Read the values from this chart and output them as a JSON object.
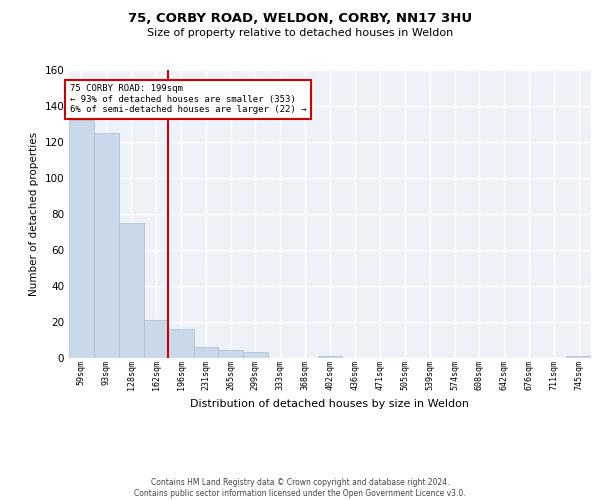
{
  "title": "75, CORBY ROAD, WELDON, CORBY, NN17 3HU",
  "subtitle": "Size of property relative to detached houses in Weldon",
  "xlabel": "Distribution of detached houses by size in Weldon",
  "ylabel": "Number of detached properties",
  "bin_labels": [
    "59sqm",
    "93sqm",
    "128sqm",
    "162sqm",
    "196sqm",
    "231sqm",
    "265sqm",
    "299sqm",
    "333sqm",
    "368sqm",
    "402sqm",
    "436sqm",
    "471sqm",
    "505sqm",
    "539sqm",
    "574sqm",
    "608sqm",
    "642sqm",
    "676sqm",
    "711sqm",
    "745sqm"
  ],
  "bar_heights": [
    132,
    125,
    75,
    21,
    16,
    6,
    4,
    3,
    0,
    0,
    1,
    0,
    0,
    0,
    0,
    0,
    0,
    0,
    0,
    0,
    1
  ],
  "bar_color": "#c9d9e9",
  "bar_edge_color": "#a8bece",
  "property_line_x": 196,
  "annotation_text": "75 CORBY ROAD: 199sqm\n← 93% of detached houses are smaller (353)\n6% of semi-detached houses are larger (22) →",
  "annotation_box_color": "#ffffff",
  "annotation_box_edge_color": "#cc0000",
  "vline_color": "#cc0000",
  "ylim": [
    0,
    160
  ],
  "yticks": [
    0,
    20,
    40,
    60,
    80,
    100,
    120,
    140,
    160
  ],
  "footer_line1": "Contains HM Land Registry data © Crown copyright and database right 2024.",
  "footer_line2": "Contains public sector information licensed under the Open Government Licence v3.0.",
  "background_color": "#eef2f8",
  "grid_color": "#ffffff",
  "bin_edges": [
    59,
    93,
    128,
    162,
    196,
    231,
    265,
    299,
    333,
    368,
    402,
    436,
    471,
    505,
    539,
    574,
    608,
    642,
    676,
    711,
    745,
    779
  ]
}
